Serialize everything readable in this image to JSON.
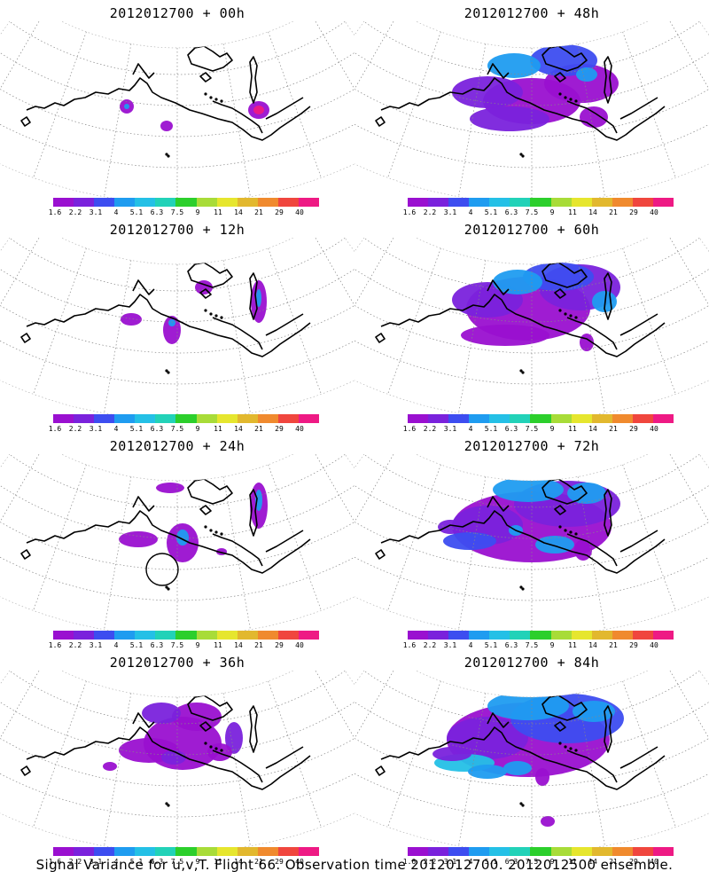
{
  "colorbar": {
    "labels": [
      "1.6",
      "2.2",
      "3.1",
      "4",
      "5.1",
      "6.3",
      "7.5",
      "9",
      "11",
      "14",
      "21",
      "29",
      "40"
    ],
    "colors": [
      "#9a10d0",
      "#7a22dc",
      "#3d4df0",
      "#1f9cf0",
      "#24c0e6",
      "#22d2b8",
      "#2ccf2c",
      "#a8dc38",
      "#e6e62e",
      "#e2b82e",
      "#f08a2e",
      "#f0463e",
      "#ee1a84"
    ]
  },
  "panels": [
    {
      "id": "p00",
      "title": "2012012700 + 00h"
    },
    {
      "id": "p48",
      "title": "2012012700 + 48h"
    },
    {
      "id": "p12",
      "title": "2012012700 + 12h"
    },
    {
      "id": "p60",
      "title": "2012012700 + 60h"
    },
    {
      "id": "p24",
      "title": "2012012700 + 24h"
    },
    {
      "id": "p72",
      "title": "2012012700 + 72h"
    },
    {
      "id": "p36",
      "title": "2012012700 + 36h"
    },
    {
      "id": "p84",
      "title": "2012012700 + 84h"
    }
  ],
  "footer": "Signal Variance for u,v,T. Flight 66. Observation time 2012012700. 2012012500 ensemble."
}
